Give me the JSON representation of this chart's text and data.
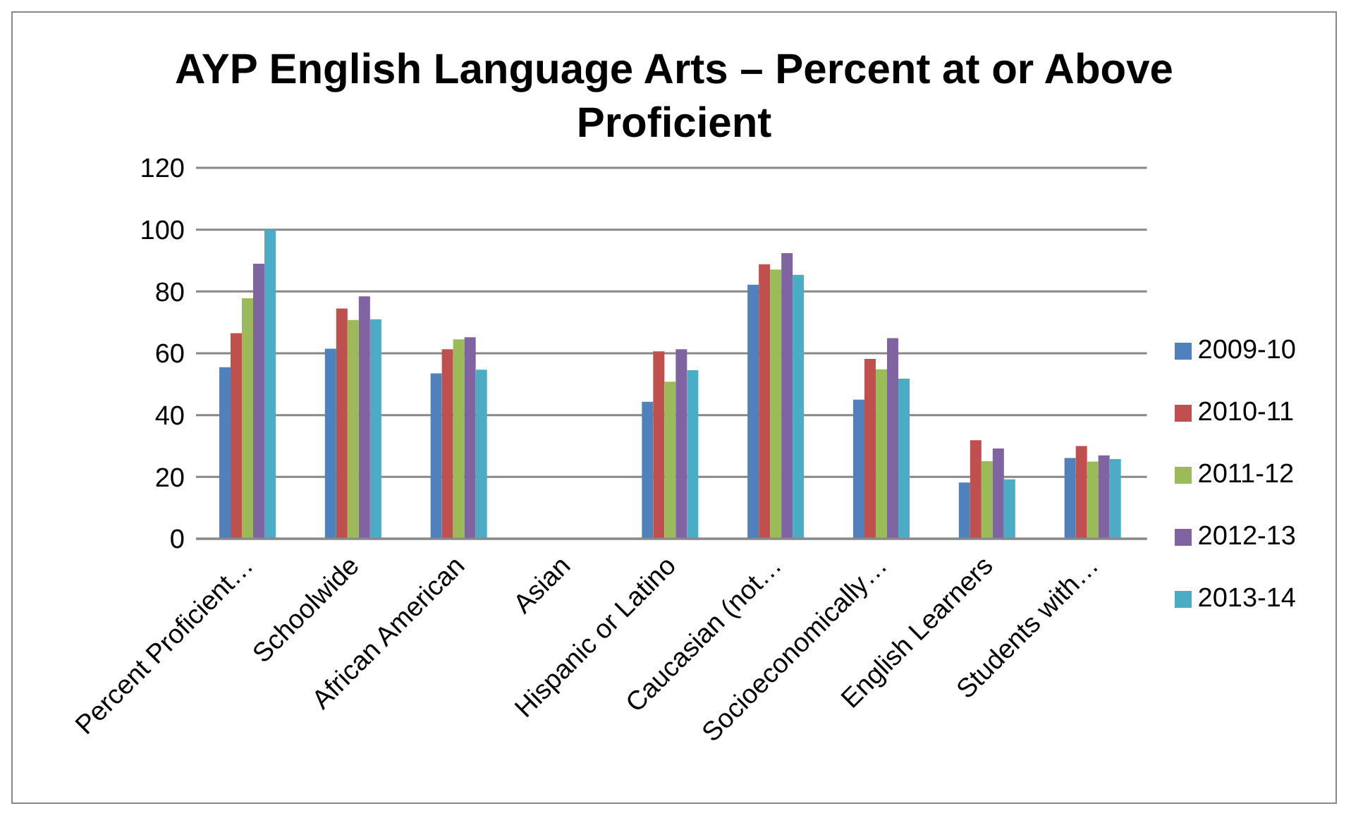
{
  "chart_data": {
    "type": "bar",
    "title": "AYP English Language Arts – Percent at or Above Proficient",
    "categories": [
      "Percent Proficient…",
      "Schoolwide",
      "African American",
      "Asian",
      "Hispanic or Latino",
      "Caucasian (not…",
      "Socioeconomically…",
      "English Learners",
      "Students with…"
    ],
    "series": [
      {
        "name": "2009-10",
        "color": "#4f81bd",
        "values": [
          55.5,
          61.5,
          53.5,
          null,
          44.3,
          82.2,
          45,
          18.2,
          26.1
        ]
      },
      {
        "name": "2010-11",
        "color": "#c0504d",
        "values": [
          66.5,
          74.5,
          61.3,
          null,
          60.6,
          88.8,
          58.2,
          31.9,
          30
        ]
      },
      {
        "name": "2011-12",
        "color": "#9bbb59",
        "values": [
          77.8,
          70.8,
          64.5,
          null,
          50.8,
          87.1,
          54.8,
          25.1,
          25
        ]
      },
      {
        "name": "2012-13",
        "color": "#8064a2",
        "values": [
          89,
          78.4,
          65.2,
          null,
          61.3,
          92.4,
          64.9,
          29.2,
          27
        ]
      },
      {
        "name": "2013-14",
        "color": "#4bacc6",
        "values": [
          100,
          71,
          54.7,
          null,
          54.5,
          85.4,
          51.8,
          19.2,
          25.8
        ]
      }
    ],
    "ylim": [
      0,
      120
    ],
    "yticks": [
      0,
      20,
      40,
      60,
      80,
      100,
      120
    ],
    "grid": "y",
    "legend": "right"
  }
}
